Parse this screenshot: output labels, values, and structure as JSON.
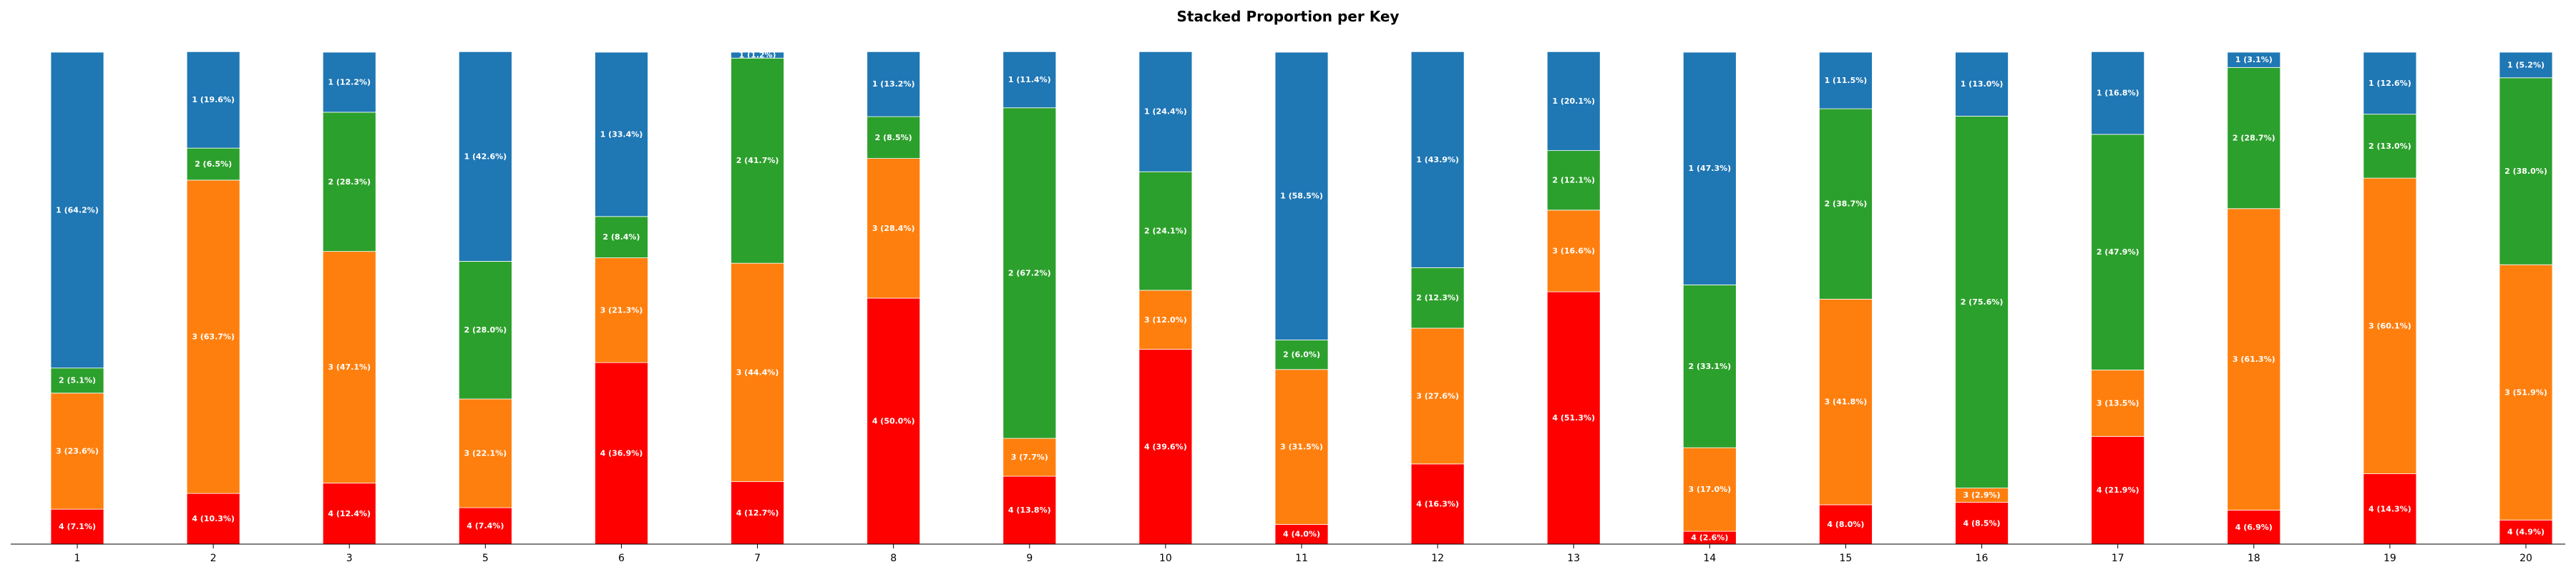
{
  "chart_data": {
    "type": "bar",
    "stacked": true,
    "title": "Stacked Proportion per Key",
    "xlabel": "",
    "ylabel": "",
    "ylim": [
      0,
      100
    ],
    "categories": [
      "1",
      "2",
      "3",
      "5",
      "6",
      "7",
      "8",
      "9",
      "10",
      "11",
      "12",
      "13",
      "14",
      "15",
      "16",
      "17",
      "18",
      "19",
      "20"
    ],
    "stack_order": [
      "4",
      "3",
      "2",
      "1"
    ],
    "colors": {
      "1": "#1f77b4",
      "2": "#2ca02c",
      "3": "#ff7f0e",
      "4": "#ff0000"
    },
    "series": [
      {
        "name": "1",
        "values": [
          64.2,
          19.6,
          12.2,
          42.6,
          33.4,
          1.2,
          13.2,
          11.4,
          24.4,
          58.5,
          43.9,
          20.1,
          47.3,
          11.5,
          13.0,
          16.8,
          3.1,
          12.6,
          5.2
        ]
      },
      {
        "name": "2",
        "values": [
          5.1,
          6.5,
          28.3,
          28.0,
          8.4,
          41.7,
          8.5,
          67.2,
          24.1,
          6.0,
          12.3,
          12.1,
          33.1,
          38.7,
          75.6,
          47.9,
          28.7,
          13.0,
          38.0
        ]
      },
      {
        "name": "3",
        "values": [
          23.6,
          63.7,
          47.1,
          22.1,
          21.3,
          44.4,
          28.4,
          7.7,
          12.0,
          31.5,
          27.6,
          16.6,
          17.0,
          41.8,
          2.9,
          13.5,
          61.3,
          60.1,
          51.9
        ]
      },
      {
        "name": "4",
        "values": [
          7.1,
          10.3,
          12.4,
          7.4,
          36.9,
          12.7,
          50.0,
          13.8,
          39.6,
          4.0,
          16.3,
          51.3,
          2.6,
          8.0,
          8.5,
          21.9,
          6.9,
          14.3,
          4.9
        ]
      }
    ]
  }
}
